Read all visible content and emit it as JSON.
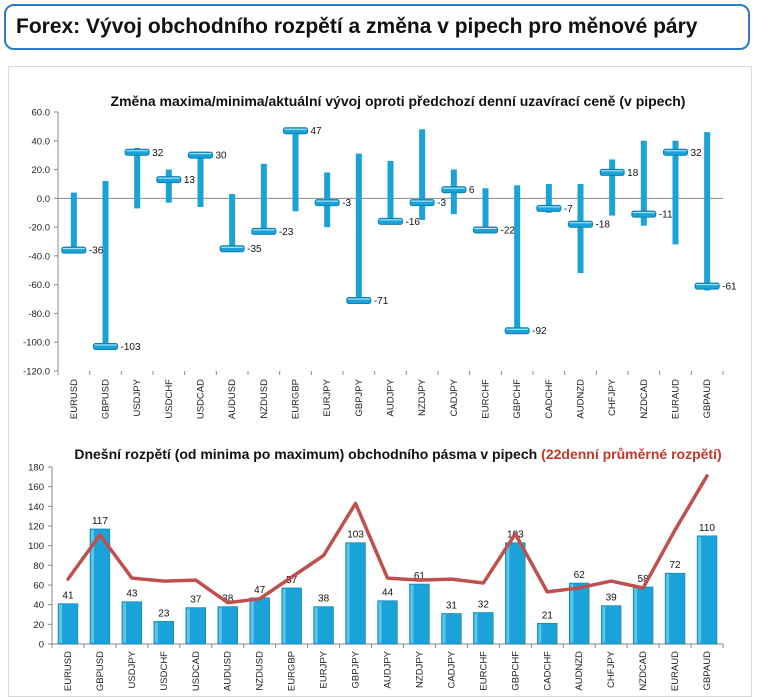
{
  "page": {
    "title": "Forex: Vývoj obchodního rozpětí a změna v pipech pro měnové páry"
  },
  "colors": {
    "bar": "#19a3d8",
    "bar_dark": "#0e7fb0",
    "line": "#c0504d",
    "title_red": "#c0392b",
    "header_border": "#2e78c4"
  },
  "chart_data": [
    {
      "type": "range",
      "title": "Změna maxima/minima/aktuální vývoj oproti předchozí denní uzavírací ceně (v pipech)",
      "ylim": [
        -120,
        60
      ],
      "yticks": [
        "60.0",
        "40.0",
        "20.0",
        "0.0",
        "-20.0",
        "-40.0",
        "-60.0",
        "-80.0",
        "-100.0",
        "-120.0"
      ],
      "categories": [
        "EURUSD",
        "GBPUSD",
        "USDJPY",
        "USDCHF",
        "USDCAD",
        "AUDUSD",
        "NZDUSD",
        "EURGBP",
        "EURJPY",
        "GBPJPY",
        "AUDJPY",
        "NZDJPY",
        "CADJPY",
        "EURCHF",
        "GBPCHF",
        "CADCHF",
        "AUDNZD",
        "CHFJPY",
        "NZDCAD",
        "EURAUD",
        "GBPAUD"
      ],
      "high": [
        4,
        12,
        35,
        20,
        31,
        3,
        24,
        48,
        18,
        31,
        26,
        48,
        20,
        7,
        9,
        10,
        10,
        27,
        40,
        40,
        46
      ],
      "low": [
        -38,
        -105,
        -7,
        -3,
        -6,
        -37,
        -24,
        -9,
        -20,
        -72,
        -18,
        -15,
        -11,
        -24,
        -93,
        -10,
        -52,
        -12,
        -19,
        -32,
        -64
      ],
      "current": [
        -36,
        -103,
        32,
        13,
        30,
        -35,
        -23,
        47,
        -3,
        -71,
        -16,
        -3,
        6,
        -22,
        -92,
        -7,
        -18,
        18,
        -11,
        32,
        -61
      ],
      "labels": [
        "-36",
        "-103",
        "32",
        "13",
        "30",
        "-35",
        "-23",
        "47",
        "-3",
        "-71",
        "-16",
        "-3",
        "6",
        "-22",
        "-92",
        "-7",
        "-18",
        "18",
        "-11",
        "32",
        "-61"
      ]
    },
    {
      "type": "bar+line",
      "title": "Dnešní rozpětí (od minima po maximum) obchodního pásma v pipech",
      "title_highlight": "(22denní průměrné rozpětí)",
      "ylim": [
        0,
        180
      ],
      "yticks": [
        "180",
        "160",
        "140",
        "120",
        "100",
        "80",
        "60",
        "40",
        "20",
        "0"
      ],
      "categories": [
        "EURUSD",
        "GBPUSD",
        "USDJPY",
        "USDCHF",
        "USDCAD",
        "AUDUSD",
        "NZDUSD",
        "EURGBP",
        "EURJPY",
        "GBPJPY",
        "AUDJPY",
        "NZDJPY",
        "CADJPY",
        "EURCHF",
        "GBPCHF",
        "CADCHF",
        "AUDNZD",
        "CHFJPY",
        "NZDCAD",
        "EURAUD",
        "GBPAUD"
      ],
      "bars": [
        41,
        117,
        43,
        23,
        37,
        38,
        47,
        57,
        38,
        103,
        44,
        61,
        31,
        32,
        103,
        21,
        62,
        39,
        58,
        72,
        110
      ],
      "labels": [
        "41",
        "117",
        "43",
        "23",
        "37",
        "38",
        "47",
        "57",
        "38",
        "103",
        "44",
        "61",
        "31",
        "32",
        "103",
        "21",
        "62",
        "39",
        "58",
        "72",
        "110"
      ],
      "avg_line": [
        66,
        111,
        67,
        64,
        65,
        42,
        46,
        68,
        90,
        143,
        67,
        65,
        66,
        62,
        112,
        53,
        57,
        64,
        57,
        116,
        171
      ]
    }
  ]
}
